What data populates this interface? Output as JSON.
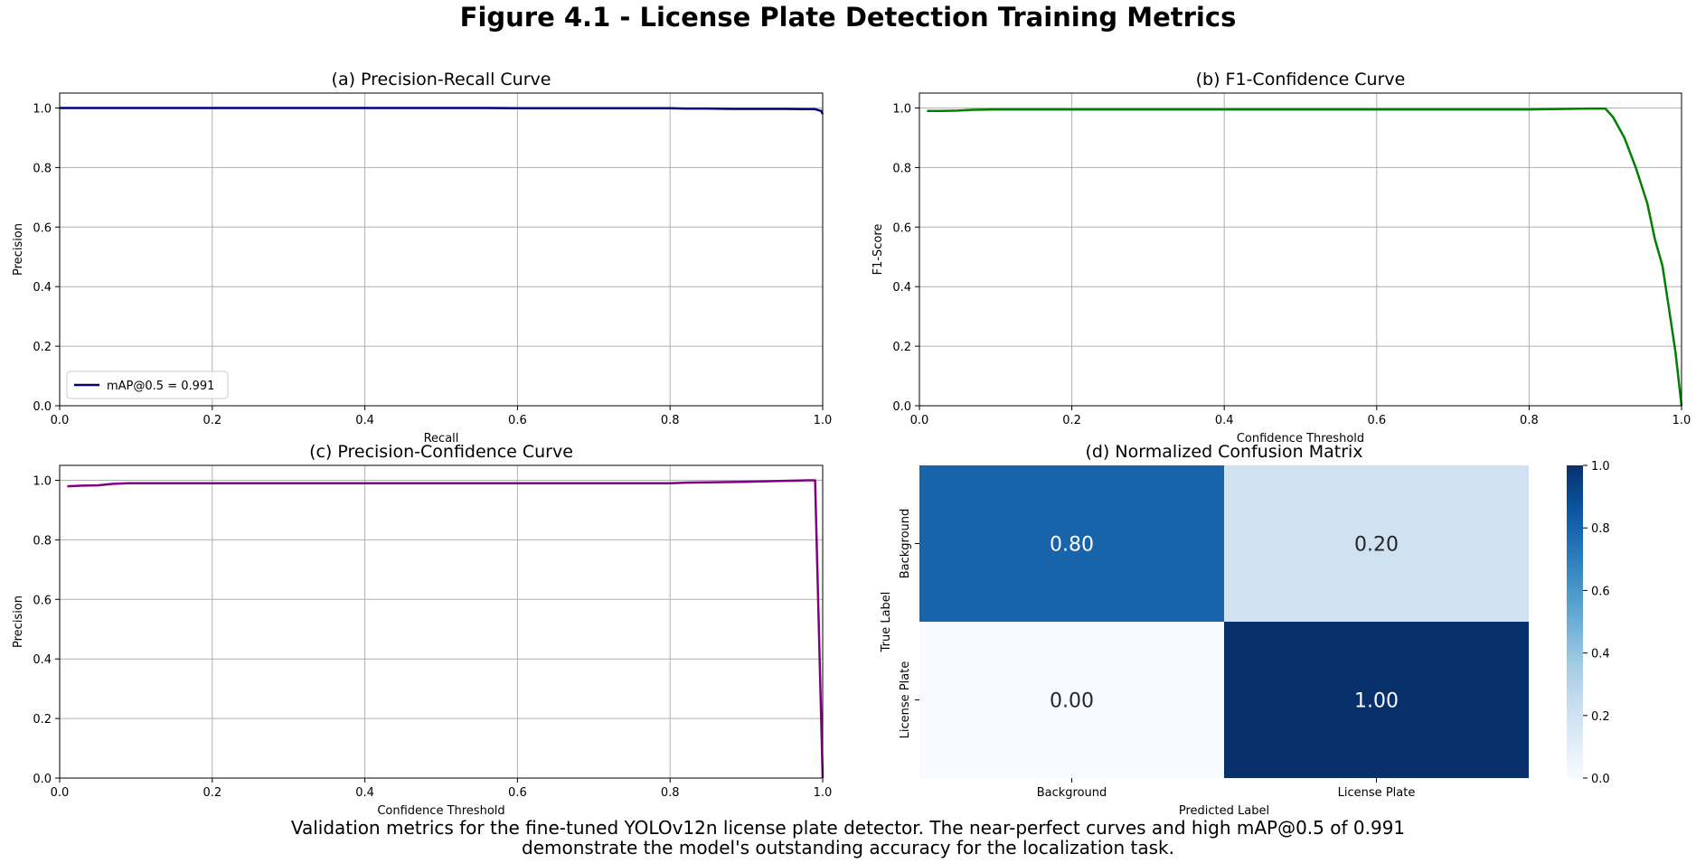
{
  "figure": {
    "title": "Figure 4.1 - License Plate Detection Training Metrics",
    "caption_line1": "Validation metrics for the fine-tuned YOLOv12n license plate detector. The near-perfect curves and high mAP@0.5 of 0.991",
    "caption_line2": "demonstrate the model's outstanding accuracy for the localization task."
  },
  "chart_data": [
    {
      "id": "pr",
      "type": "line",
      "title": "(a) Precision-Recall Curve",
      "xlabel": "Recall",
      "ylabel": "Precision",
      "xlim": [
        0,
        1
      ],
      "ylim": [
        0,
        1.05
      ],
      "xticks": [
        "0.0",
        "0.2",
        "0.4",
        "0.6",
        "0.8",
        "1.0"
      ],
      "yticks": [
        "0.0",
        "0.2",
        "0.4",
        "0.6",
        "0.8",
        "1.0"
      ],
      "grid": true,
      "legend": "lower left",
      "color": "#000080",
      "series": [
        {
          "name": "mAP@0.5 = 0.991",
          "x": [
            0,
            0.1,
            0.2,
            0.3,
            0.4,
            0.5,
            0.56,
            0.6,
            0.7,
            0.8,
            0.82,
            0.85,
            0.88,
            0.9,
            0.95,
            0.99,
            0.998,
            1.0
          ],
          "y": [
            1.0,
            1.0,
            1.0,
            1.0,
            1.0,
            1.0,
            1.0,
            0.999,
            0.999,
            0.999,
            0.998,
            0.998,
            0.997,
            0.997,
            0.997,
            0.996,
            0.99,
            0.98
          ]
        }
      ]
    },
    {
      "id": "f1",
      "type": "line",
      "title": "(b) F1-Confidence Curve",
      "xlabel": "Confidence Threshold",
      "ylabel": "F1-Score",
      "xlim": [
        0,
        1
      ],
      "ylim": [
        0,
        1.05
      ],
      "xticks": [
        "0.0",
        "0.2",
        "0.4",
        "0.6",
        "0.8",
        "1.0"
      ],
      "yticks": [
        "0.0",
        "0.2",
        "0.4",
        "0.6",
        "0.8",
        "1.0"
      ],
      "grid": true,
      "color": "#008000",
      "series": [
        {
          "x": [
            0.01,
            0.03,
            0.05,
            0.07,
            0.1,
            0.2,
            0.4,
            0.6,
            0.8,
            0.85,
            0.88,
            0.9,
            0.91,
            0.925,
            0.94,
            0.955,
            0.965,
            0.975,
            0.985,
            0.992,
            1.0
          ],
          "y": [
            0.99,
            0.99,
            0.991,
            0.994,
            0.995,
            0.995,
            0.995,
            0.995,
            0.995,
            0.997,
            0.998,
            0.998,
            0.97,
            0.9,
            0.8,
            0.68,
            0.56,
            0.47,
            0.3,
            0.18,
            0.0
          ]
        }
      ]
    },
    {
      "id": "pc",
      "type": "line",
      "title": "(c) Precision-Confidence Curve",
      "xlabel": "Confidence Threshold",
      "ylabel": "Precision",
      "xlim": [
        0,
        1
      ],
      "ylim": [
        0,
        1.05
      ],
      "xticks": [
        "0.0",
        "0.2",
        "0.4",
        "0.6",
        "0.8",
        "1.0"
      ],
      "yticks": [
        "0.0",
        "0.2",
        "0.4",
        "0.6",
        "0.8",
        "1.0"
      ],
      "grid": true,
      "color": "#800080",
      "series": [
        {
          "x": [
            0.01,
            0.03,
            0.05,
            0.07,
            0.09,
            0.2,
            0.4,
            0.6,
            0.8,
            0.82,
            0.85,
            0.9,
            0.95,
            0.98,
            0.99,
            1.0
          ],
          "y": [
            0.98,
            0.982,
            0.983,
            0.988,
            0.99,
            0.99,
            0.99,
            0.99,
            0.99,
            0.992,
            0.993,
            0.995,
            0.998,
            1.0,
            1.0,
            0.0
          ]
        }
      ]
    },
    {
      "id": "cm",
      "type": "heatmap",
      "title": "(d) Normalized Confusion Matrix",
      "xlabel": "Predicted Label",
      "ylabel": "True Label",
      "xticklabels": [
        "Background",
        "License Plate"
      ],
      "yticklabels": [
        "Background",
        "License Plate"
      ],
      "values": [
        [
          0.8,
          0.2
        ],
        [
          0.0,
          1.0
        ]
      ],
      "labels": [
        [
          "0.80",
          "0.20"
        ],
        [
          "0.00",
          "1.00"
        ]
      ],
      "colormap": "Blues",
      "vmin": 0,
      "vmax": 1,
      "colorbar_ticks": [
        "0.0",
        "0.2",
        "0.4",
        "0.6",
        "0.8",
        "1.0"
      ]
    }
  ]
}
